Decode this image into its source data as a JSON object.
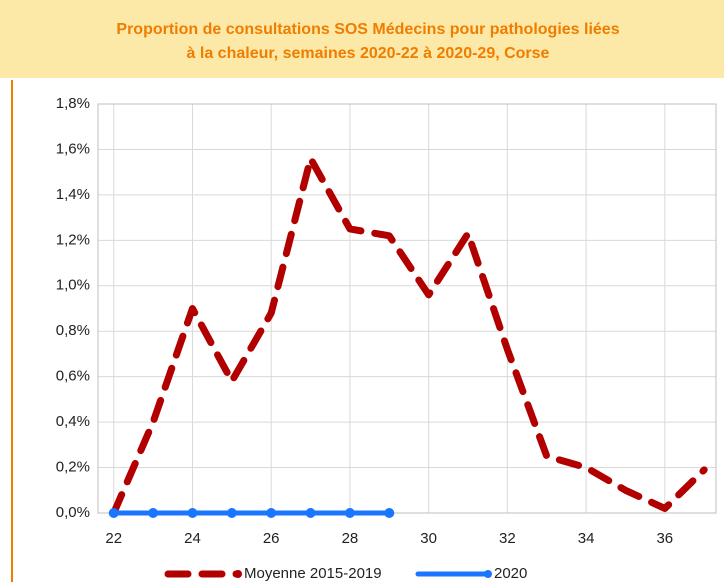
{
  "chart_data": {
    "type": "line",
    "title": [
      "Proportion de consultations SOS Médecins pour pathologies liées",
      "à la chaleur, semaines 2020-22 à 2020-29, Corse"
    ],
    "x": [
      22,
      23,
      24,
      25,
      26,
      27,
      28,
      29,
      30,
      31,
      32,
      33,
      34,
      35,
      36,
      37
    ],
    "series": [
      {
        "name": "Moyenne 2015-2019",
        "color": "#b20000",
        "values": [
          0.0,
          0.4,
          0.9,
          0.58,
          0.88,
          1.56,
          1.25,
          1.22,
          0.96,
          1.23,
          0.72,
          0.25,
          0.2,
          0.1,
          0.02,
          0.19
        ]
      },
      {
        "name": "2020",
        "color": "#1a75ff",
        "values": [
          0,
          0,
          0,
          0,
          0,
          0,
          0,
          0,
          null,
          null,
          null,
          null,
          null,
          null,
          null,
          null
        ]
      }
    ],
    "xlim": [
      21.6,
      37.3
    ],
    "xticks": [
      22,
      24,
      26,
      28,
      30,
      32,
      34,
      36
    ],
    "ylim": [
      0,
      1.8
    ],
    "yticks": [
      {
        "value": 0,
        "label": "0,0%"
      },
      {
        "value": 0.2,
        "label": "0,2%"
      },
      {
        "value": 0.4,
        "label": "0,4%"
      },
      {
        "value": 0.6,
        "label": "0,6%"
      },
      {
        "value": 0.8,
        "label": "0,8%"
      },
      {
        "value": 1.0,
        "label": "1,0%"
      },
      {
        "value": 1.2,
        "label": "1,2%"
      },
      {
        "value": 1.4,
        "label": "1,4%"
      },
      {
        "value": 1.6,
        "label": "1,6%"
      },
      {
        "value": 1.8,
        "label": "1,8%"
      }
    ],
    "grid": true
  }
}
